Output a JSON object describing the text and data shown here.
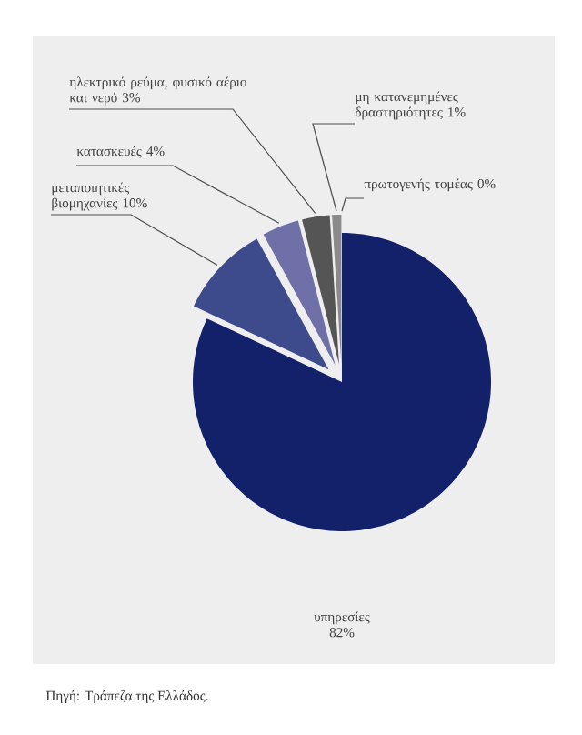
{
  "chart_data": {
    "type": "pie",
    "categories": [
      "υπηρεσίες",
      "μεταποιητικές βιομηχανίες",
      "κατασκευές",
      "ηλεκτρικό ρεύμα, φυσικό αέριο και νερό",
      "μη κατανεμημένες δραστηριότητες",
      "πρωτογενής τομέας"
    ],
    "values": [
      82,
      10,
      4,
      3,
      1,
      0
    ],
    "value_labels": [
      "82%",
      "10%",
      "4%",
      "3%",
      "1%",
      "0%"
    ],
    "colors": [
      "#13216b",
      "#3d4a8c",
      "#7070a8",
      "#555555",
      "#8a8a8a",
      "#c0c0c0"
    ],
    "annotations": [
      "Πηγή: Τράπεζα της Ελλάδος."
    ]
  }
}
